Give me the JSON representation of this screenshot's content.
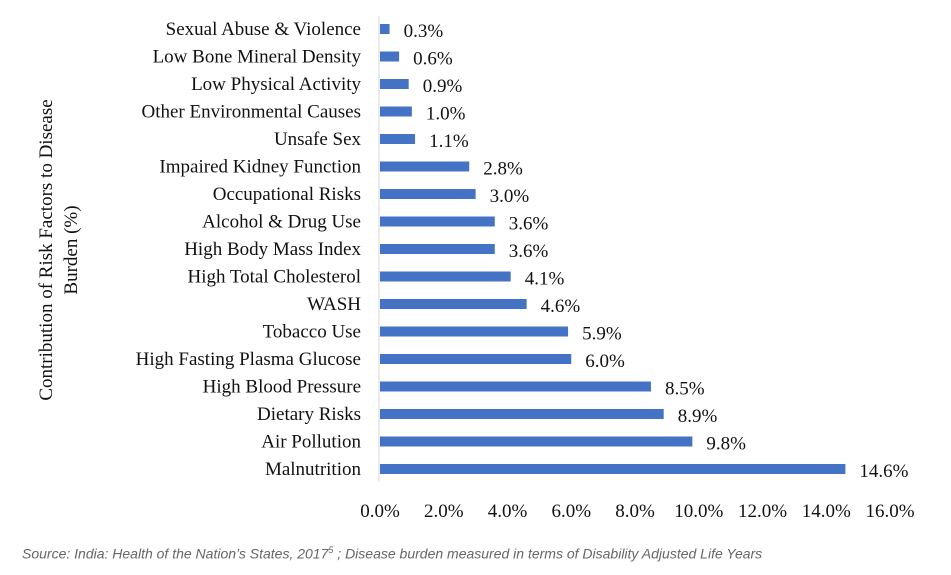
{
  "chart_data": {
    "type": "bar",
    "orientation": "horizontal",
    "ylabel_line1": "Contribution of Risk Factors to Disease",
    "ylabel_line2": "Burden (%)",
    "xlim": [
      0,
      16
    ],
    "xticks": [
      "0.0%",
      "2.0%",
      "4.0%",
      "6.0%",
      "8.0%",
      "10.0%",
      "12.0%",
      "14.0%",
      "16.0%"
    ],
    "bar_color": "#4472C4",
    "categories": [
      "Sexual Abuse & Violence",
      "Low Bone Mineral Density",
      "Low Physical Activity",
      "Other Environmental Causes",
      "Unsafe Sex",
      "Impaired Kidney Function",
      "Occupational Risks",
      "Alcohol & Drug Use",
      "High Body Mass Index",
      "High Total Cholesterol",
      "WASH",
      "Tobacco Use",
      "High Fasting Plasma Glucose",
      "High Blood Pressure",
      "Dietary Risks",
      "Air Pollution",
      "Malnutrition"
    ],
    "values": [
      0.3,
      0.6,
      0.9,
      1.0,
      1.1,
      2.8,
      3.0,
      3.6,
      3.6,
      4.1,
      4.6,
      5.9,
      6.0,
      8.5,
      8.9,
      9.8,
      14.6
    ],
    "labels": [
      "0.3%",
      "0.6%",
      "0.9%",
      "1.0%",
      "1.1%",
      "2.8%",
      "3.0%",
      "3.6%",
      "3.6%",
      "4.1%",
      "4.6%",
      "5.9%",
      "6.0%",
      "8.5%",
      "8.9%",
      "9.8%",
      "14.6%"
    ]
  },
  "source": {
    "prefix": "Source: India: Health of the Nation’s States, 2017",
    "superscript": "5",
    "suffix": " ; Disease burden measured in terms of Disability Adjusted Life Years"
  }
}
